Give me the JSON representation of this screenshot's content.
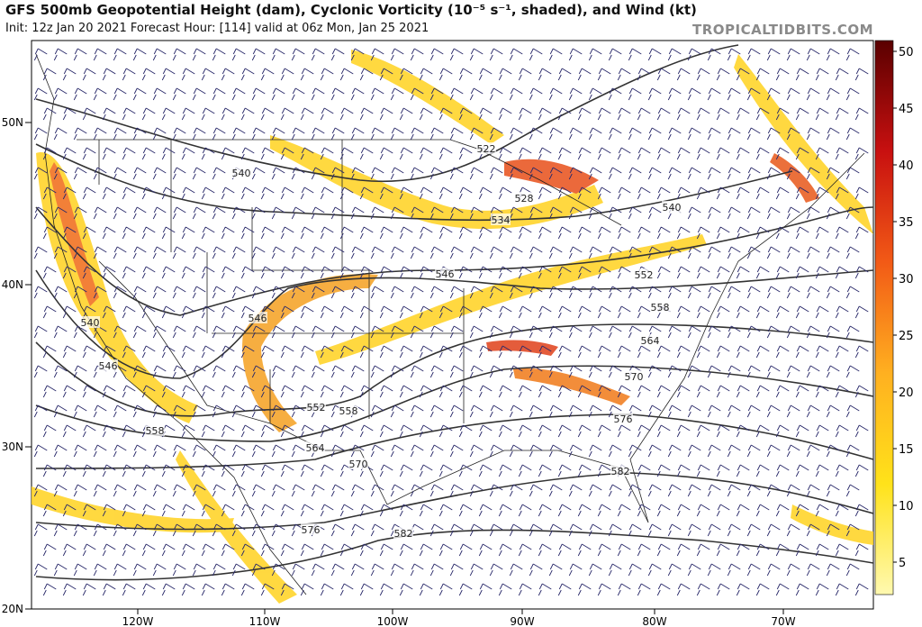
{
  "header": {
    "title": "GFS 500mb Geopotential Height (dam), Cyclonic Vorticity (10⁻⁵ s⁻¹, shaded), and Wind (kt)",
    "subtitle": "Init: 12z Jan 20 2021   Forecast Hour: [114]   valid at 06z Mon, Jan 25 2021",
    "watermark": "TROPICALTIDBITS.COM"
  },
  "map": {
    "lat_labels": [
      "50N",
      "40N",
      "30N",
      "20N"
    ],
    "lon_labels": [
      "120W",
      "110W",
      "100W",
      "90W",
      "80W",
      "70W"
    ],
    "contour_labels": [
      "522",
      "528",
      "534",
      "540",
      "540",
      "546",
      "546",
      "540",
      "546",
      "552",
      "558",
      "564",
      "570",
      "576",
      "582",
      "552",
      "558",
      "558",
      "564",
      "570",
      "576",
      "582"
    ]
  },
  "colorbar": {
    "ticks": [
      5,
      10,
      15,
      20,
      25,
      30,
      35,
      40,
      45,
      50
    ]
  }
}
